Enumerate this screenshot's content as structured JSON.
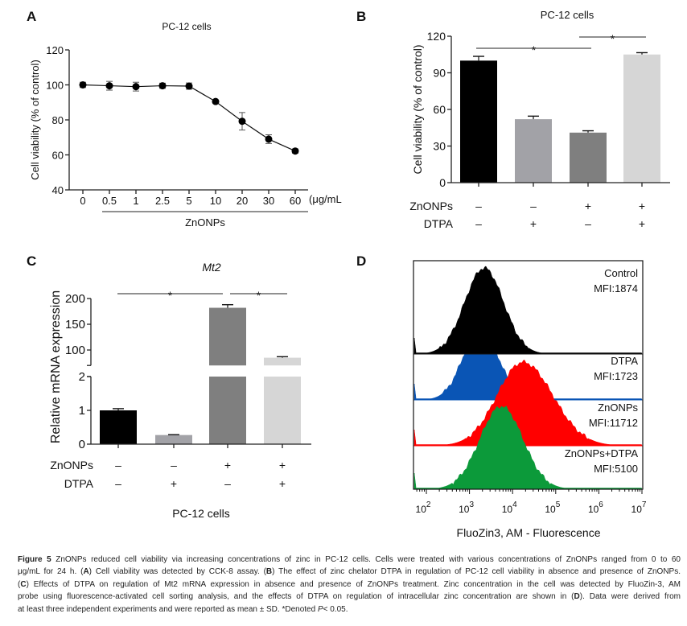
{
  "chart_data": [
    {
      "panel": "A",
      "type": "line",
      "title": "PC-12 cells",
      "ylabel": "Cell viability (% of control)",
      "xlabel": "ZnONPs",
      "x_unit": "(μg/mL",
      "categories": [
        "0",
        "0.5",
        "1",
        "2.5",
        "5",
        "10",
        "20",
        "30",
        "60"
      ],
      "values": [
        100,
        99.5,
        99,
        99.5,
        99.3,
        90.5,
        79.2,
        69,
        62.2
      ],
      "errors": [
        1.5,
        2.5,
        2.5,
        1.5,
        1.8,
        0.8,
        5,
        2.5,
        1.2
      ],
      "ylim": [
        40,
        120
      ],
      "yticks": [
        40,
        60,
        80,
        100,
        120
      ],
      "color": "#000000",
      "grid": false
    },
    {
      "panel": "B",
      "type": "bar",
      "title": "PC-12 cells",
      "ylabel": "Cell viability (% of control)",
      "values": [
        100,
        52,
        41,
        105
      ],
      "errors": [
        3.5,
        2.5,
        1.5,
        1.5
      ],
      "colors": [
        "#000000",
        "#a2a2a7",
        "#7f7f7f",
        "#d6d6d6"
      ],
      "ylim": [
        0,
        120
      ],
      "yticks": [
        0,
        30,
        60,
        90,
        120
      ],
      "conditions": [
        {
          "label": "ZnONPs",
          "signs": [
            "–",
            "–",
            "+",
            "+"
          ]
        },
        {
          "label": "DTPA",
          "signs": [
            "–",
            "+",
            "–",
            "+"
          ]
        }
      ],
      "significance": [
        {
          "from": 0,
          "to": 2,
          "label": "*"
        },
        {
          "from": 2,
          "to": 3,
          "label": "*"
        }
      ],
      "grid": false
    },
    {
      "panel": "C",
      "type": "bar",
      "title": "Mt2",
      "ylabel": "Relative mRNA expression",
      "xlabel": "PC-12 cells",
      "values": [
        1.0,
        0.27,
        182,
        85
      ],
      "errors": [
        0.05,
        0.01,
        6,
        2
      ],
      "colors": [
        "#000000",
        "#a2a2a7",
        "#7f7f7f",
        "#d6d6d6"
      ],
      "axis_break": {
        "lower": [
          0,
          2
        ],
        "upper": [
          70,
          200
        ]
      },
      "yticks_lower": [
        0,
        1,
        2
      ],
      "yticks_upper": [
        100,
        150,
        200
      ],
      "conditions": [
        {
          "label": "ZnONPs",
          "signs": [
            "–",
            "–",
            "+",
            "+"
          ]
        },
        {
          "label": "DTPA",
          "signs": [
            "–",
            "+",
            "–",
            "+"
          ]
        }
      ],
      "significance": [
        {
          "from": 0,
          "to": 2,
          "label": "*"
        },
        {
          "from": 2,
          "to": 3,
          "label": "*"
        }
      ],
      "grid": false
    },
    {
      "panel": "D",
      "type": "area",
      "subtype": "flow-cytometry histogram (stacked offset)",
      "xlabel": "FluoZin3, AM - Fluorescence",
      "x_scale": "log",
      "xlim": [
        50,
        10000000
      ],
      "xticks": [
        "2",
        "3",
        "4",
        "5",
        "6",
        "7"
      ],
      "xtick_base": "10",
      "series": [
        {
          "name": "Control",
          "mfi_label": "MFI:1874",
          "color": "#000000",
          "mode_log10": 3.34,
          "spread_log10": 0.45
        },
        {
          "name": "DTPA",
          "mfi_label": "MFI:1723",
          "color": "#0a55b5",
          "mode_log10": 3.25,
          "spread_log10": 0.4
        },
        {
          "name": "ZnONPs",
          "mfi_label": "MFI:11712",
          "color": "#ff0000",
          "mode_log10": 4.24,
          "spread_log10": 0.6
        },
        {
          "name": "ZnONPs+DTPA",
          "mfi_label": "MFI:5100",
          "color": "#0c9a3a",
          "mode_log10": 3.74,
          "spread_log10": 0.5
        }
      ],
      "grid": false
    }
  ],
  "caption": {
    "lines": [
      [
        {
          "t": "Figure 5",
          "s": "b"
        },
        {
          "t": " ZnONPs reduced cell viability via increasing concentrations of zinc in PC-12 cells. Cells were treated with various concentrations of ZnONPs ranged from 0 to 60"
        }
      ],
      [
        {
          "t": "μg/mL for 24 h. ("
        },
        {
          "t": "A",
          "s": "b"
        },
        {
          "t": ") Cell viability was detected by CCK-8 assay. ("
        },
        {
          "t": "B",
          "s": "b"
        },
        {
          "t": ") The effect of zinc chelator DTPA in regulation of PC-12 cell viability in absence and presence of ZnONPs."
        }
      ],
      [
        {
          "t": "("
        },
        {
          "t": "C",
          "s": "b"
        },
        {
          "t": ") Effects of DTPA on regulation of Mt2 mRNA expression in absence and presence of ZnONPs treatment. Zinc concentration in the cell was detected by FluoZin-3, AM"
        }
      ],
      [
        {
          "t": "probe using fluorescence-activated cell sorting analysis, and the effects of DTPA on regulation of intracellular zinc concentration are shown in ("
        },
        {
          "t": "D",
          "s": "b"
        },
        {
          "t": "). Data were derived from"
        }
      ],
      [
        {
          "t": "at least three independent experiments and were reported as mean ± SD. *Denoted "
        },
        {
          "t": "P",
          "s": "i"
        },
        {
          "t": "< 0.05."
        }
      ]
    ]
  }
}
